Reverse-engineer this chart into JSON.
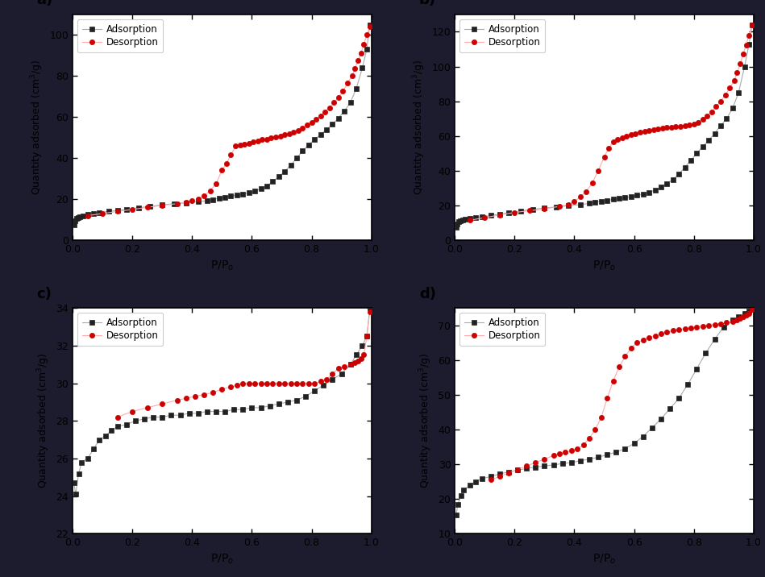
{
  "background_color": "#1a1a2e",
  "panel_bg": "#ffffff",
  "adsorption_color": "#222222",
  "desorption_color": "#cc0000",
  "line_color_ads": "#aaaaaa",
  "line_color_des": "#ffaaaa",
  "marker_ads": "s",
  "marker_des": "o",
  "markersize": 4.5,
  "linewidth": 0.8,
  "panels": [
    {
      "label": "a)",
      "ylim": [
        0,
        110
      ],
      "yticks": [
        0,
        20,
        40,
        60,
        80,
        100
      ],
      "xlim": [
        0.0,
        1.0
      ],
      "xticks": [
        0.0,
        0.2,
        0.4,
        0.6,
        0.8,
        1.0
      ],
      "ads_x": [
        0.004,
        0.008,
        0.012,
        0.018,
        0.025,
        0.035,
        0.05,
        0.07,
        0.09,
        0.12,
        0.15,
        0.18,
        0.22,
        0.26,
        0.3,
        0.34,
        0.38,
        0.42,
        0.45,
        0.47,
        0.49,
        0.51,
        0.53,
        0.55,
        0.57,
        0.59,
        0.61,
        0.63,
        0.65,
        0.67,
        0.69,
        0.71,
        0.73,
        0.75,
        0.77,
        0.79,
        0.81,
        0.83,
        0.85,
        0.87,
        0.89,
        0.91,
        0.93,
        0.95,
        0.97,
        0.985,
        0.995
      ],
      "ads_y": [
        7.5,
        9.5,
        10.5,
        11.0,
        11.5,
        12.0,
        12.5,
        13.0,
        13.5,
        14.0,
        14.5,
        15.0,
        15.8,
        16.5,
        17.2,
        17.8,
        18.2,
        18.8,
        19.2,
        19.8,
        20.5,
        21.0,
        21.5,
        22.0,
        22.5,
        23.0,
        24.0,
        25.0,
        26.5,
        28.5,
        31.0,
        33.5,
        36.5,
        40.0,
        43.5,
        46.5,
        49.0,
        51.5,
        54.0,
        56.5,
        59.5,
        63.0,
        67.0,
        74.0,
        84.0,
        93.0,
        105.0
      ],
      "des_x": [
        0.995,
        0.985,
        0.975,
        0.965,
        0.955,
        0.945,
        0.935,
        0.92,
        0.905,
        0.89,
        0.875,
        0.86,
        0.845,
        0.83,
        0.815,
        0.8,
        0.785,
        0.77,
        0.755,
        0.74,
        0.725,
        0.71,
        0.695,
        0.68,
        0.665,
        0.65,
        0.635,
        0.62,
        0.605,
        0.59,
        0.575,
        0.56,
        0.545,
        0.53,
        0.515,
        0.5,
        0.48,
        0.46,
        0.44,
        0.42,
        0.4,
        0.38,
        0.35,
        0.3,
        0.25,
        0.2,
        0.15,
        0.1,
        0.05
      ],
      "des_y": [
        104.0,
        100.0,
        95.5,
        91.0,
        87.5,
        83.5,
        80.0,
        76.5,
        72.5,
        69.5,
        67.0,
        64.5,
        62.5,
        60.5,
        59.0,
        57.5,
        56.0,
        54.5,
        53.5,
        52.8,
        52.0,
        51.3,
        50.8,
        50.3,
        49.8,
        49.3,
        49.0,
        48.3,
        47.8,
        47.3,
        46.8,
        46.3,
        45.8,
        41.5,
        37.5,
        34.0,
        27.5,
        24.0,
        21.5,
        20.0,
        19.2,
        18.5,
        17.8,
        17.0,
        16.0,
        15.0,
        14.0,
        13.0,
        12.0
      ]
    },
    {
      "label": "b)",
      "ylim": [
        0,
        130
      ],
      "yticks": [
        0,
        20,
        40,
        60,
        80,
        100,
        120
      ],
      "xlim": [
        0.0,
        1.0
      ],
      "xticks": [
        0.0,
        0.2,
        0.4,
        0.6,
        0.8,
        1.0
      ],
      "ads_x": [
        0.004,
        0.008,
        0.012,
        0.018,
        0.025,
        0.035,
        0.05,
        0.07,
        0.09,
        0.12,
        0.15,
        0.18,
        0.22,
        0.26,
        0.3,
        0.34,
        0.38,
        0.42,
        0.45,
        0.47,
        0.49,
        0.51,
        0.53,
        0.55,
        0.57,
        0.59,
        0.61,
        0.63,
        0.65,
        0.67,
        0.69,
        0.71,
        0.73,
        0.75,
        0.77,
        0.79,
        0.81,
        0.83,
        0.85,
        0.87,
        0.89,
        0.91,
        0.93,
        0.95,
        0.97,
        0.985,
        0.995
      ],
      "ads_y": [
        7.5,
        9.5,
        10.5,
        11.0,
        11.5,
        12.0,
        12.5,
        13.0,
        13.5,
        14.2,
        15.0,
        15.8,
        16.8,
        17.8,
        18.5,
        19.2,
        19.8,
        20.5,
        21.2,
        21.8,
        22.5,
        23.0,
        23.5,
        24.0,
        24.5,
        25.0,
        25.8,
        26.5,
        27.5,
        28.8,
        30.5,
        32.5,
        35.0,
        38.0,
        42.0,
        46.0,
        50.0,
        54.0,
        57.5,
        61.5,
        66.0,
        70.0,
        76.0,
        85.0,
        100.0,
        113.0,
        124.0
      ],
      "des_x": [
        0.995,
        0.985,
        0.975,
        0.965,
        0.955,
        0.945,
        0.935,
        0.92,
        0.905,
        0.89,
        0.875,
        0.86,
        0.845,
        0.83,
        0.815,
        0.8,
        0.785,
        0.77,
        0.755,
        0.74,
        0.725,
        0.71,
        0.695,
        0.68,
        0.665,
        0.65,
        0.635,
        0.62,
        0.605,
        0.59,
        0.575,
        0.56,
        0.545,
        0.53,
        0.515,
        0.5,
        0.48,
        0.46,
        0.44,
        0.42,
        0.4,
        0.38,
        0.35,
        0.3,
        0.25,
        0.2,
        0.15,
        0.1,
        0.05
      ],
      "des_y": [
        124.0,
        118.0,
        112.5,
        107.0,
        101.5,
        96.5,
        92.0,
        87.5,
        83.5,
        80.0,
        77.0,
        74.0,
        71.5,
        69.5,
        68.0,
        67.0,
        66.5,
        66.0,
        65.5,
        65.5,
        65.0,
        65.0,
        64.5,
        64.0,
        63.5,
        63.0,
        62.5,
        62.0,
        61.5,
        61.0,
        60.0,
        59.0,
        58.0,
        56.5,
        53.0,
        48.0,
        40.0,
        33.0,
        28.0,
        25.0,
        22.5,
        20.5,
        19.5,
        18.0,
        17.0,
        16.0,
        14.5,
        13.0,
        11.5
      ]
    },
    {
      "label": "c)",
      "ylim": [
        22,
        34
      ],
      "yticks": [
        22,
        24,
        26,
        28,
        30,
        32,
        34
      ],
      "xlim": [
        0.0,
        1.0
      ],
      "xticks": [
        0.0,
        0.2,
        0.4,
        0.6,
        0.8,
        1.0
      ],
      "ads_x": [
        0.004,
        0.01,
        0.02,
        0.03,
        0.05,
        0.07,
        0.09,
        0.11,
        0.13,
        0.15,
        0.18,
        0.21,
        0.24,
        0.27,
        0.3,
        0.33,
        0.36,
        0.39,
        0.42,
        0.45,
        0.48,
        0.51,
        0.54,
        0.57,
        0.6,
        0.63,
        0.66,
        0.69,
        0.72,
        0.75,
        0.78,
        0.81,
        0.84,
        0.87,
        0.9,
        0.93,
        0.95,
        0.97,
        0.985,
        0.995
      ],
      "ads_y": [
        24.7,
        24.1,
        25.2,
        25.8,
        26.0,
        26.5,
        27.0,
        27.2,
        27.5,
        27.7,
        27.8,
        28.0,
        28.1,
        28.2,
        28.2,
        28.3,
        28.3,
        28.4,
        28.4,
        28.5,
        28.5,
        28.5,
        28.6,
        28.6,
        28.7,
        28.7,
        28.8,
        28.9,
        29.0,
        29.1,
        29.3,
        29.6,
        29.9,
        30.2,
        30.5,
        31.0,
        31.5,
        32.0,
        32.5,
        34.0
      ],
      "des_x": [
        0.995,
        0.985,
        0.975,
        0.965,
        0.955,
        0.945,
        0.93,
        0.91,
        0.89,
        0.87,
        0.85,
        0.83,
        0.81,
        0.79,
        0.77,
        0.75,
        0.73,
        0.71,
        0.69,
        0.67,
        0.65,
        0.63,
        0.61,
        0.59,
        0.57,
        0.55,
        0.53,
        0.5,
        0.47,
        0.44,
        0.41,
        0.38,
        0.35,
        0.3,
        0.25,
        0.2,
        0.15
      ],
      "des_y": [
        33.8,
        32.5,
        31.5,
        31.3,
        31.2,
        31.1,
        31.0,
        30.9,
        30.8,
        30.5,
        30.2,
        30.1,
        30.0,
        30.0,
        30.0,
        30.0,
        30.0,
        30.0,
        30.0,
        30.0,
        30.0,
        30.0,
        30.0,
        30.0,
        30.0,
        29.9,
        29.8,
        29.7,
        29.5,
        29.4,
        29.3,
        29.2,
        29.1,
        28.9,
        28.7,
        28.5,
        28.2
      ]
    },
    {
      "label": "d)",
      "ylim": [
        10,
        75
      ],
      "yticks": [
        10,
        20,
        30,
        40,
        50,
        60,
        70
      ],
      "xlim": [
        0.0,
        1.0
      ],
      "xticks": [
        0.0,
        0.2,
        0.4,
        0.6,
        0.8,
        1.0
      ],
      "ads_x": [
        0.004,
        0.01,
        0.02,
        0.03,
        0.05,
        0.07,
        0.09,
        0.12,
        0.15,
        0.18,
        0.21,
        0.24,
        0.27,
        0.3,
        0.33,
        0.36,
        0.39,
        0.42,
        0.45,
        0.48,
        0.51,
        0.54,
        0.57,
        0.6,
        0.63,
        0.66,
        0.69,
        0.72,
        0.75,
        0.78,
        0.81,
        0.84,
        0.87,
        0.9,
        0.93,
        0.95,
        0.97,
        0.985,
        0.995
      ],
      "ads_y": [
        15.5,
        18.5,
        21.0,
        22.5,
        24.0,
        25.0,
        25.8,
        26.5,
        27.2,
        27.8,
        28.3,
        28.8,
        29.2,
        29.5,
        29.8,
        30.2,
        30.5,
        31.0,
        31.5,
        32.0,
        32.8,
        33.5,
        34.5,
        36.0,
        38.0,
        40.5,
        43.0,
        46.0,
        49.0,
        53.0,
        57.5,
        62.0,
        66.0,
        69.5,
        71.5,
        72.5,
        73.5,
        74.0,
        74.5
      ],
      "des_x": [
        0.995,
        0.985,
        0.975,
        0.965,
        0.955,
        0.945,
        0.93,
        0.91,
        0.89,
        0.87,
        0.85,
        0.83,
        0.81,
        0.79,
        0.77,
        0.75,
        0.73,
        0.71,
        0.69,
        0.67,
        0.65,
        0.63,
        0.61,
        0.59,
        0.57,
        0.55,
        0.53,
        0.51,
        0.49,
        0.47,
        0.45,
        0.43,
        0.41,
        0.39,
        0.37,
        0.35,
        0.33,
        0.3,
        0.27,
        0.24,
        0.21,
        0.18,
        0.15,
        0.12
      ],
      "des_y": [
        74.5,
        73.5,
        73.0,
        72.5,
        72.0,
        71.5,
        71.0,
        70.8,
        70.5,
        70.2,
        70.0,
        69.8,
        69.5,
        69.2,
        69.0,
        68.8,
        68.5,
        68.0,
        67.5,
        67.0,
        66.5,
        65.8,
        65.0,
        63.5,
        61.0,
        58.0,
        54.0,
        49.0,
        43.5,
        40.0,
        37.5,
        35.5,
        34.5,
        34.0,
        33.5,
        33.0,
        32.5,
        31.5,
        30.5,
        29.5,
        28.5,
        27.5,
        26.5,
        25.5
      ]
    }
  ],
  "xlabel": "P/P$_o$",
  "ylabel": "Quantity adsorbed (cm$^3$/g)",
  "legend_ads": "Adsorption",
  "legend_des": "Desorption"
}
